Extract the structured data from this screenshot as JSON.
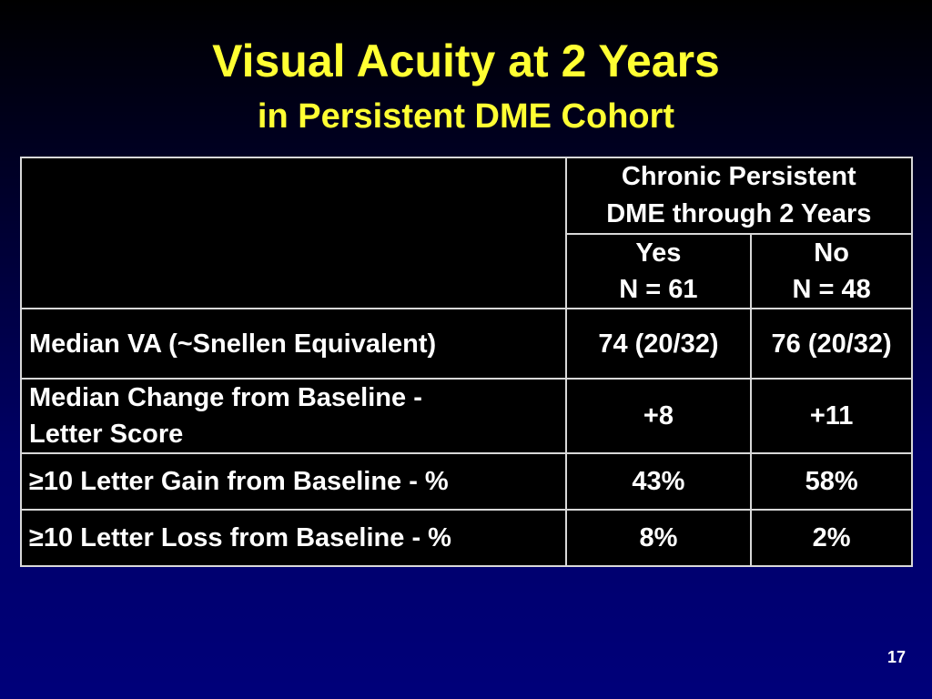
{
  "slide": {
    "title": "Visual Acuity at 2 Years",
    "subtitle": "in Persistent DME Cohort",
    "page_number": "17"
  },
  "table": {
    "group_header_line1": "Chronic Persistent",
    "group_header_line2": "DME through 2 Years",
    "columns": [
      {
        "label": "Yes",
        "n": "N = 61"
      },
      {
        "label": "No",
        "n": "N = 48"
      }
    ],
    "rows": [
      {
        "label": "Median VA (~Snellen Equivalent)",
        "values": [
          "74 (20/32)",
          "76 (20/32)"
        ]
      },
      {
        "label_line1": "Median Change from Baseline -",
        "label_line2": "Letter Score",
        "values": [
          "+8",
          "+11"
        ]
      },
      {
        "label": "≥10 Letter Gain from Baseline - %",
        "values": [
          "43%",
          "58%"
        ]
      },
      {
        "label": "≥10 Letter Loss from Baseline - %",
        "values": [
          "8%",
          "2%"
        ]
      }
    ]
  },
  "colors": {
    "title": "#ffff33",
    "text": "#ffffff",
    "table_background": "#000000",
    "border": "#d8d8d8",
    "slide_background_bottom": "#00007a"
  }
}
